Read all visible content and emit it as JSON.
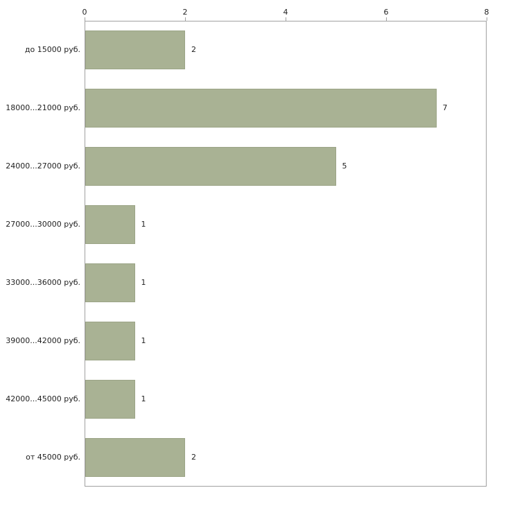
{
  "chart_data": {
    "type": "bar",
    "orientation": "horizontal",
    "title": "",
    "xlabel": "",
    "ylabel": "",
    "categories": [
      "до 15000 руб.",
      "18000...21000 руб.",
      "24000...27000 руб.",
      "27000...30000 руб.",
      "33000...36000 руб.",
      "39000...42000 руб.",
      "42000...45000 руб.",
      "от 45000 руб."
    ],
    "values": [
      2,
      7,
      5,
      1,
      1,
      1,
      1,
      2
    ],
    "value_labels": [
      "2",
      "7",
      "5",
      "1",
      "1",
      "1",
      "1",
      "2"
    ],
    "xlim": [
      0,
      8
    ],
    "x_ticks": [
      0,
      2,
      4,
      6,
      8
    ],
    "x_tick_labels": [
      "0",
      "2",
      "4",
      "6",
      "8"
    ],
    "grid": false,
    "legend": false,
    "bar_color": "#a9b294",
    "bar_border_color": "#9ba486",
    "axis_color": "#a0a0a0"
  }
}
